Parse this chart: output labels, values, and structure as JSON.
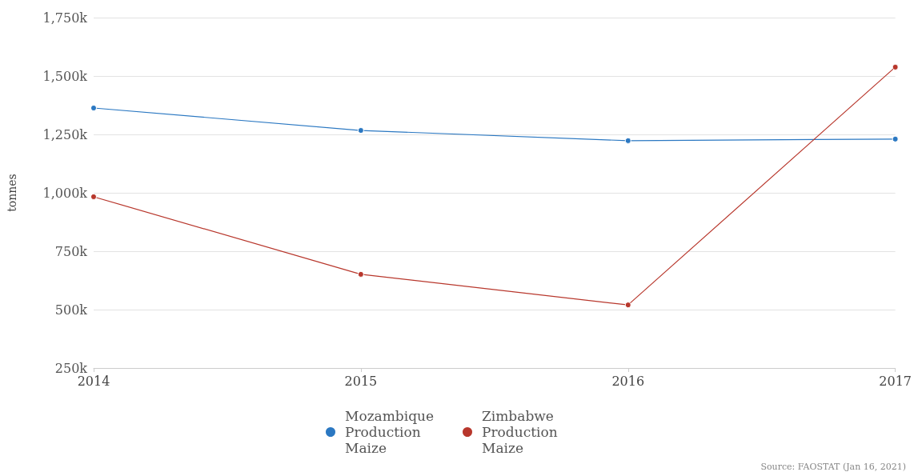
{
  "chart_data": {
    "type": "line",
    "ylabel": "tonnes",
    "categories": [
      "2014",
      "2015",
      "2016",
      "2017"
    ],
    "series": [
      {
        "name": "Mozambique Production Maize",
        "color": "#2b78c2",
        "values": [
          1363000,
          1267000,
          1223000,
          1230000
        ]
      },
      {
        "name": "Zimbabwe Production Maize",
        "color": "#b8372c",
        "values": [
          983000,
          651000,
          520000,
          1538000
        ]
      }
    ],
    "ylim": [
      250000,
      1750000
    ],
    "yticks": [
      {
        "value": 250000,
        "label": "250k"
      },
      {
        "value": 500000,
        "label": "500k"
      },
      {
        "value": 750000,
        "label": "750k"
      },
      {
        "value": 1000000,
        "label": "1,000k"
      },
      {
        "value": 1250000,
        "label": "1,250k"
      },
      {
        "value": 1500000,
        "label": "1,500k"
      },
      {
        "value": 1750000,
        "label": "1,750k"
      }
    ],
    "grid": "y",
    "legend": "bottom",
    "marker": "circle",
    "line_style": "solid",
    "annotations": [
      "Source: FAOSTAT (Jan 16, 2021)"
    ]
  }
}
